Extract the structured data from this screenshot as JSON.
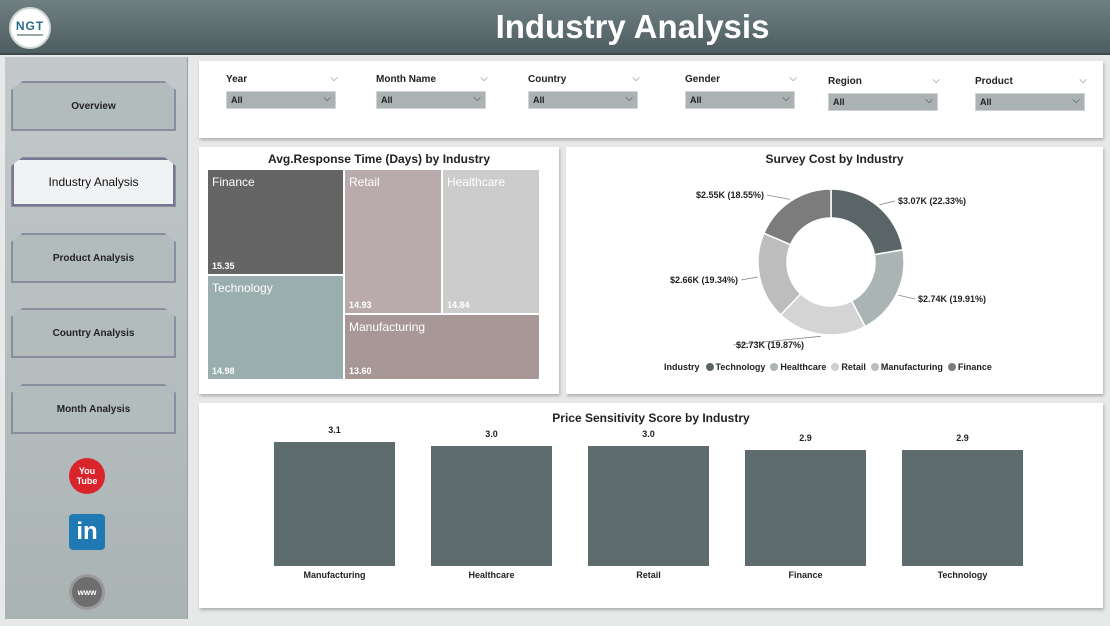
{
  "header": {
    "title": "Industry Analysis",
    "logo_text": "NGT"
  },
  "sidebar": {
    "items": [
      {
        "label": "Overview"
      },
      {
        "label": "Industry Analysis"
      },
      {
        "label": "Product Analysis"
      },
      {
        "label": "Country Analysis"
      },
      {
        "label": "Month Analysis"
      }
    ],
    "social": {
      "youtube_top": "You",
      "youtube_bottom": "Tube",
      "linkedin": "in",
      "web": "www"
    }
  },
  "filters": [
    {
      "label": "Year",
      "value": "All"
    },
    {
      "label": "Month Name",
      "value": "All"
    },
    {
      "label": "Country",
      "value": "All"
    },
    {
      "label": "Gender",
      "value": "All"
    },
    {
      "label": "Region",
      "value": "All"
    },
    {
      "label": "Product",
      "value": "All"
    }
  ],
  "icons": {
    "chevron": "⌵"
  },
  "colors": {
    "bar": "#5f6c6e",
    "header": "#5a696c",
    "accent": "#6a6275"
  },
  "chart_data": [
    {
      "type": "treemap",
      "title": "Avg.Response Time (Days) by Industry",
      "categories": [
        "Finance",
        "Technology",
        "Retail",
        "Healthcare",
        "Manufacturing"
      ],
      "values": [
        15.35,
        14.98,
        14.93,
        14.84,
        13.6
      ],
      "value_labels": [
        "15.35",
        "14.98",
        "14.93",
        "14.84",
        "13.60"
      ],
      "colors": [
        "#656565",
        "#9aaeae",
        "#b9abab",
        "#cccccc",
        "#a89797"
      ]
    },
    {
      "type": "pie",
      "title": "Survey Cost by Industry",
      "legend_title": "Industry",
      "categories": [
        "Technology",
        "Healthcare",
        "Retail",
        "Manufacturing",
        "Finance"
      ],
      "values": [
        3.07,
        2.74,
        2.73,
        2.66,
        2.55
      ],
      "labels": [
        "$3.07K (22.33%)",
        "$2.74K (19.91%)",
        "$2.73K (19.87%)",
        "$2.66K (19.34%)",
        "$2.55K (18.55%)"
      ],
      "colors": [
        "#5a6567",
        "#aab4b4",
        "#d4d4d4",
        "#bdbdbd",
        "#7c7c7c"
      ]
    },
    {
      "type": "bar",
      "title": "Price Sensitivity Score by Industry",
      "categories": [
        "Manufacturing",
        "Healthcare",
        "Retail",
        "Finance",
        "Technology"
      ],
      "values": [
        3.1,
        3.0,
        3.0,
        2.9,
        2.9
      ],
      "value_labels": [
        "3.1",
        "3.0",
        "3.0",
        "2.9",
        "2.9"
      ],
      "ylim": [
        0,
        3.5
      ]
    }
  ]
}
